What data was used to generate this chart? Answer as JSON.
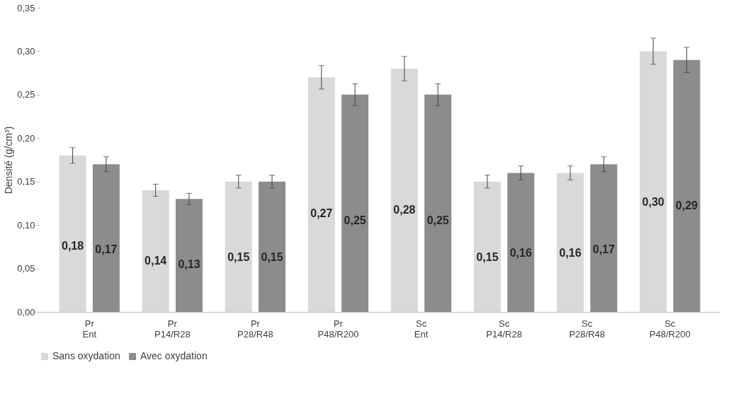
{
  "chart_data": {
    "type": "bar",
    "ylabel": "Densité (g/cm³)",
    "categories": [
      "Pr Ent",
      "Pr P14/R28",
      "Pr P28/R48",
      "Pr P48/R200",
      "Sc Ent",
      "Sc P14/R28",
      "Sc P28/R48",
      "Sc P48/R200"
    ],
    "series": [
      {
        "name": "Sans oxydation",
        "color": "#d9d9d9",
        "values": [
          0.18,
          0.14,
          0.15,
          0.27,
          0.28,
          0.15,
          0.16,
          0.3
        ],
        "errors": [
          0.009,
          0.007,
          0.0075,
          0.0135,
          0.014,
          0.0075,
          0.008,
          0.015
        ],
        "value_labels": [
          "0,18",
          "0,14",
          "0,15",
          "0,27",
          "0,28",
          "0,15",
          "0,16",
          "0,30"
        ]
      },
      {
        "name": "Avec oxydation",
        "color": "#8c8c8c",
        "values": [
          0.17,
          0.13,
          0.15,
          0.25,
          0.25,
          0.16,
          0.17,
          0.29
        ],
        "errors": [
          0.0085,
          0.0065,
          0.0075,
          0.0125,
          0.0125,
          0.008,
          0.0085,
          0.0145
        ],
        "value_labels": [
          "0,17",
          "0,13",
          "0,15",
          "0,25",
          "0,25",
          "0,16",
          "0,17",
          "0,29"
        ]
      }
    ],
    "ylim": [
      0,
      0.35
    ],
    "yticks": [
      {
        "value": 0,
        "label": "0,00"
      },
      {
        "value": 0.05,
        "label": "0,05"
      },
      {
        "value": 0.1,
        "label": "0,10"
      },
      {
        "value": 0.15,
        "label": "0,15"
      },
      {
        "value": 0.2,
        "label": "0,20"
      },
      {
        "value": 0.25,
        "label": "0,25"
      },
      {
        "value": 0.3,
        "label": "0,30"
      },
      {
        "value": 0.35,
        "label": "0,35"
      }
    ],
    "grid": false,
    "legend": "bottom"
  }
}
